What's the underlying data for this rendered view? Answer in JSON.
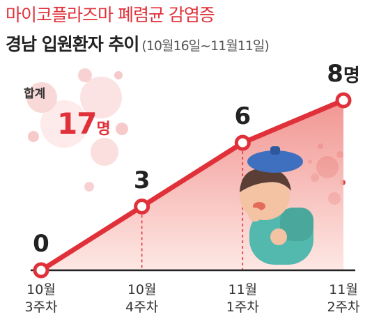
{
  "header": {
    "title": "마이코플라즈마 폐렴균 감염증",
    "subtitle_main": "경남 입원환자 추이",
    "subtitle_range": "(10월16일~11월11일)"
  },
  "total": {
    "label": "합계",
    "value": "17",
    "unit": "명"
  },
  "colors": {
    "accent": "#e0313a",
    "fill_dark": "#f08a86",
    "fill_light": "#fde5e1"
  },
  "chart_data": {
    "type": "line",
    "title": "마이코플라즈마 폐렴균 감염증",
    "categories": [
      {
        "line1": "10월",
        "line2": "3주차"
      },
      {
        "line1": "10월",
        "line2": "4주차"
      },
      {
        "line1": "11월",
        "line2": "1주차"
      },
      {
        "line1": "11월",
        "line2": "2주차"
      }
    ],
    "values": [
      0,
      3,
      6,
      8
    ],
    "data_labels": [
      "0",
      "3",
      "6",
      "8"
    ],
    "last_label_unit": "명",
    "ylim": [
      0,
      8
    ],
    "grid": false,
    "legend": "none"
  }
}
